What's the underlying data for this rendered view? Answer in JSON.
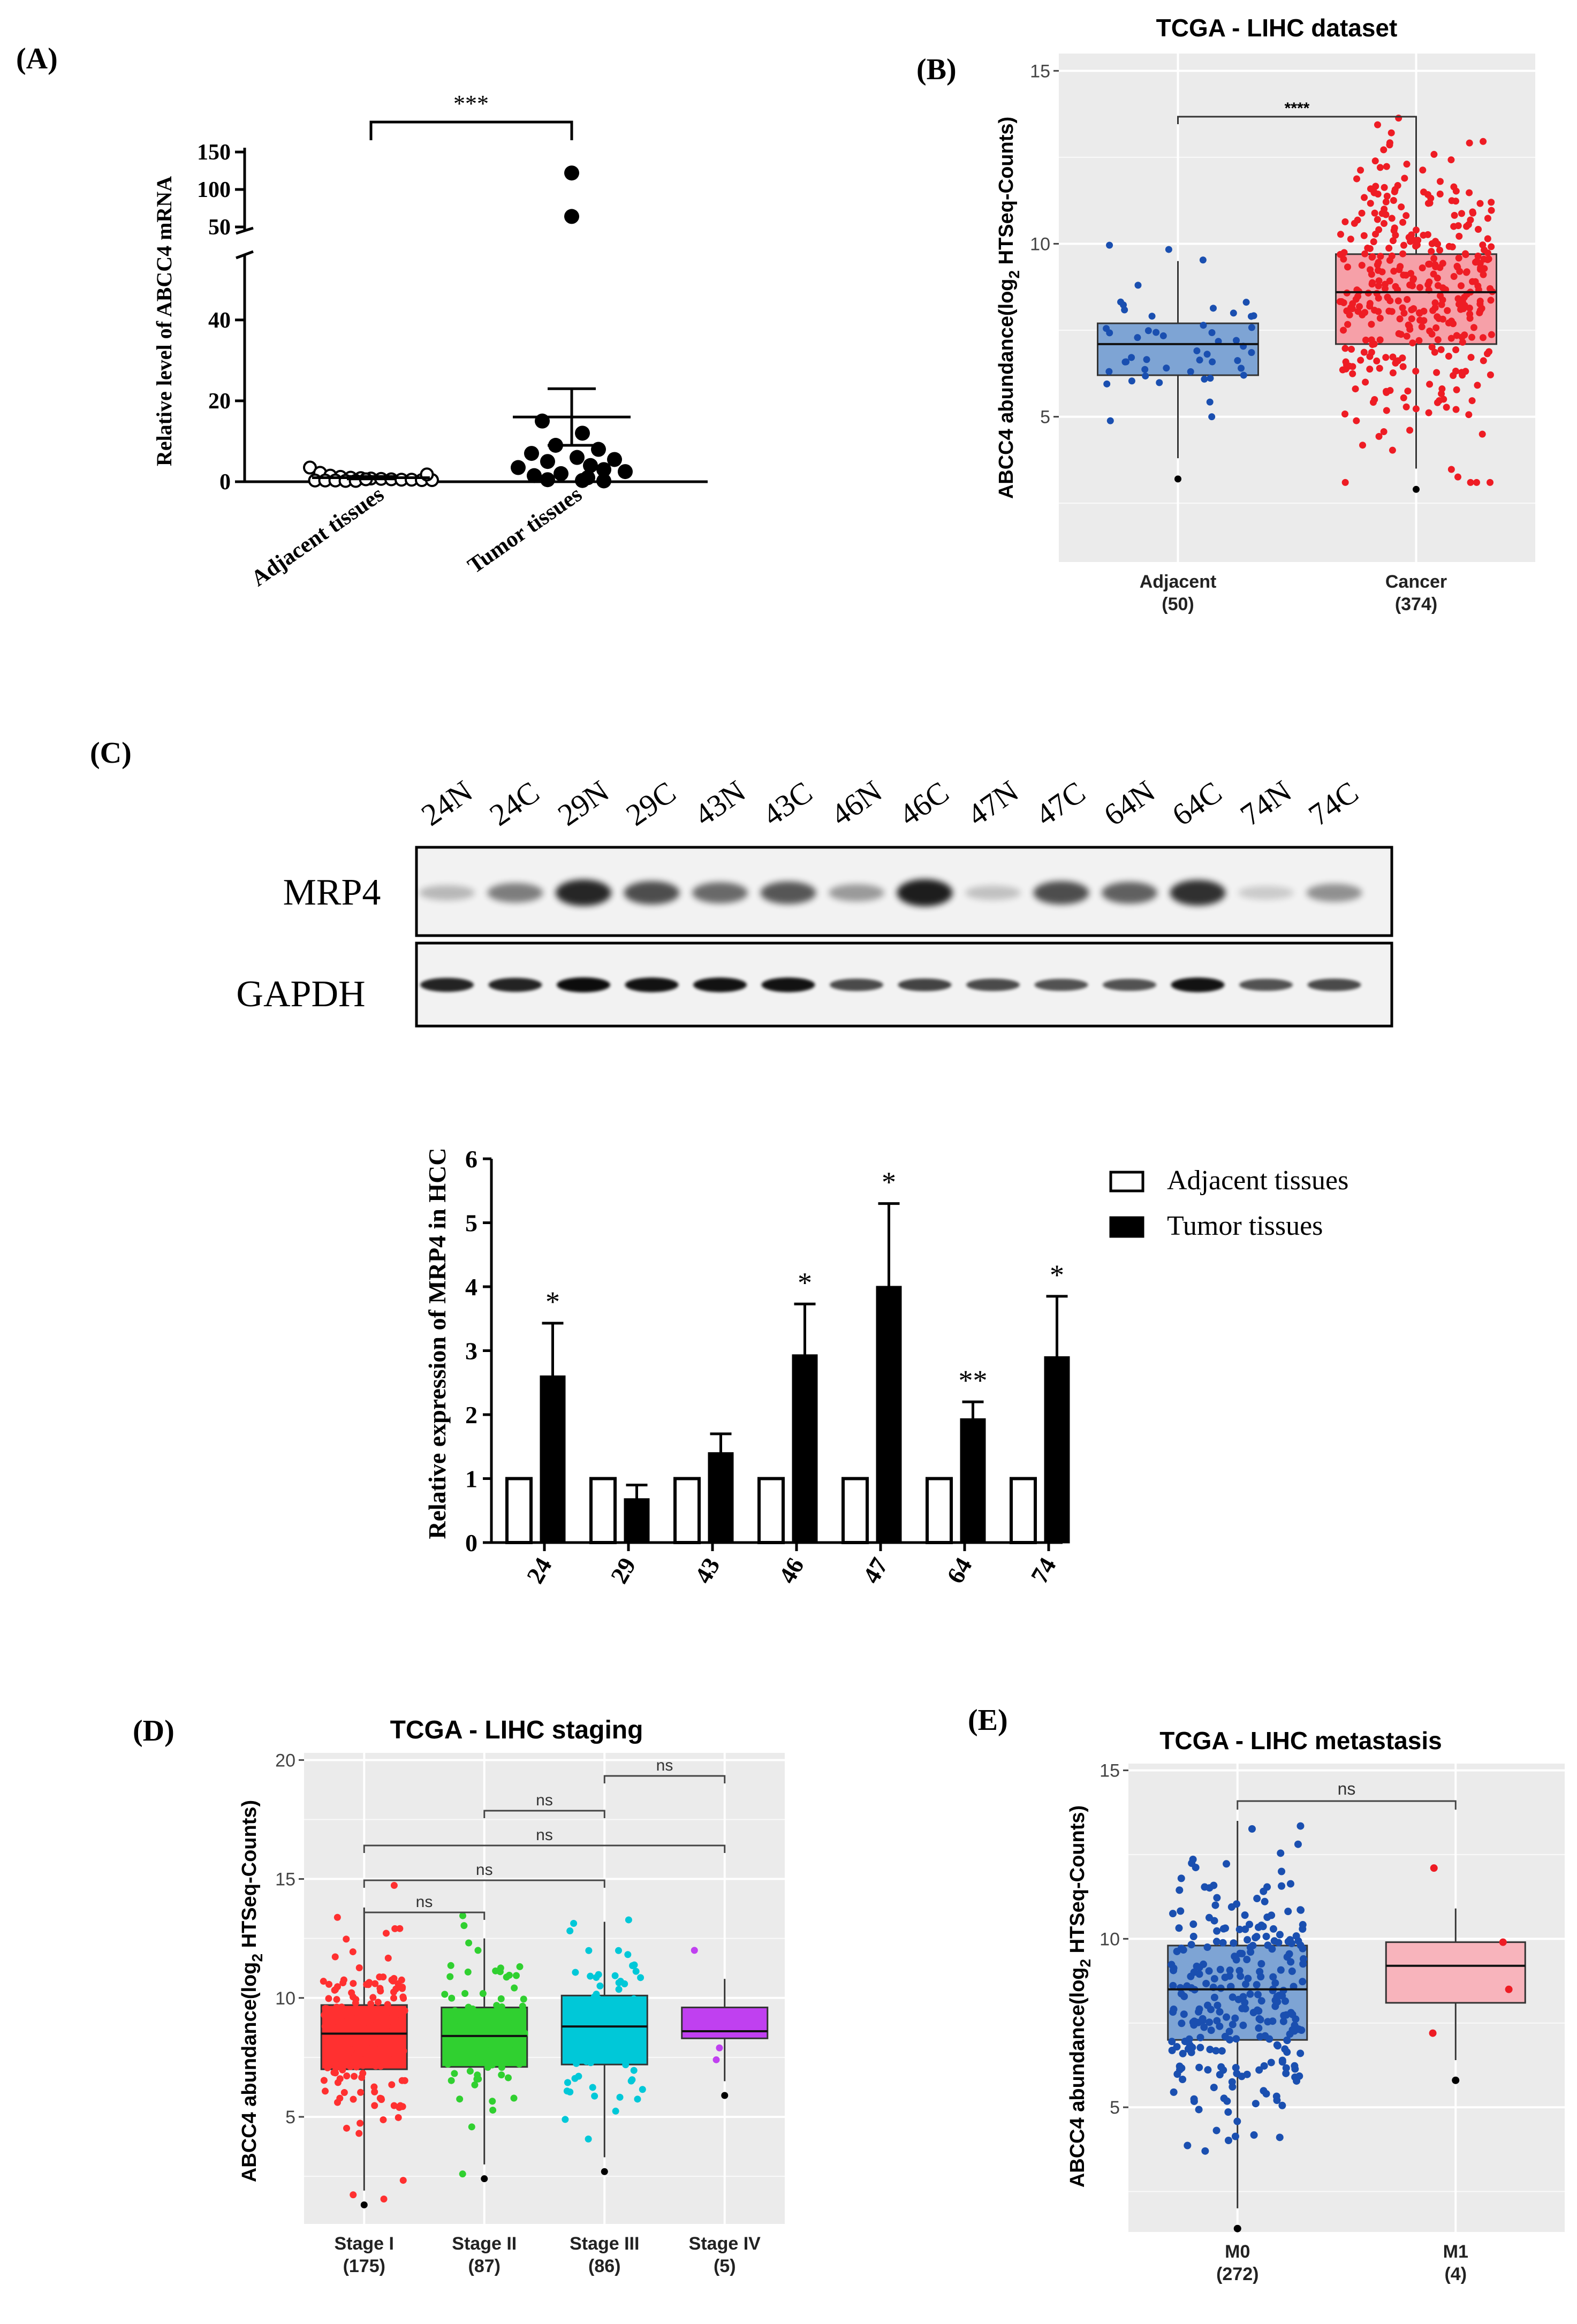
{
  "panels": {
    "A": {
      "label": "(A)"
    },
    "B": {
      "label": "(B)"
    },
    "C": {
      "label": "(C)"
    },
    "D": {
      "label": "(D)"
    },
    "E": {
      "label": "(E)"
    }
  },
  "colors": {
    "adjacent_box": "#7ea4d4",
    "adjacent_pts": "#1a4fb0",
    "cancer_box": "#f6a0a8",
    "cancer_pts": "#ee1c24",
    "stage1": "#ff3030",
    "stage2": "#30d030",
    "stage3": "#00c8d8",
    "stage4": "#c040f0",
    "m1_box": "#f8b4bc",
    "m1_pts": "#ee1c24",
    "panel_bg": "#ebebeb"
  },
  "chart_data": [
    {
      "id": "A",
      "type": "scatter",
      "title": "",
      "ylabel": "Relative level of ABCC4 mRNA",
      "categories": [
        "Adjacent tissues",
        "Tumor tissues"
      ],
      "yticks": [
        "0",
        "20",
        "40",
        "50",
        "100",
        "150"
      ],
      "axis_break": [
        45,
        50
      ],
      "significance": "***",
      "series": [
        {
          "name": "Adjacent tissues",
          "marker": "open-circle",
          "mean": 1.0,
          "sem": 0.3,
          "values": [
            3.5,
            2.2,
            1.5,
            1.2,
            1.0,
            0.9,
            0.8,
            0.7,
            0.6,
            0.5,
            0.5,
            0.4,
            0.4,
            0.3,
            0.3,
            0.3,
            0.2,
            0.2,
            0.6,
            1.8
          ]
        },
        {
          "name": "Tumor tissues",
          "marker": "filled-circle",
          "mean": 16,
          "sem": 7,
          "values": [
            122,
            64,
            15,
            12,
            9,
            8,
            7,
            6,
            5.5,
            5,
            4,
            3.5,
            3,
            2.5,
            2,
            1.5,
            1.0,
            0.5,
            0.3,
            0.2
          ]
        }
      ]
    },
    {
      "id": "B",
      "type": "box",
      "title": "TCGA - LIHC dataset",
      "ylabel_prefix": "ABCC4 abundance(log",
      "ylabel_sub": "2",
      "ylabel_suffix": " HTSeq-Counts)",
      "yticks": [
        "5",
        "10",
        "15"
      ],
      "ylim": [
        0.8,
        15.5
      ],
      "significance": "****",
      "groups": [
        {
          "name": "Adjacent",
          "n": "(50)",
          "q1": 6.2,
          "median": 7.1,
          "q3": 7.7,
          "wlo": 3.8,
          "whi": 9.5,
          "npts": 50,
          "color": "adjacent_box",
          "pt_color": "adjacent_pts"
        },
        {
          "name": "Cancer",
          "n": "(374)",
          "q1": 7.1,
          "median": 8.6,
          "q3": 9.7,
          "wlo": 3.5,
          "whi": 13.6,
          "npts": 374,
          "color": "cancer_box",
          "pt_color": "cancer_pts"
        }
      ]
    },
    {
      "id": "C-blot",
      "type": "other",
      "lanes": [
        "24N",
        "24C",
        "29N",
        "29C",
        "43N",
        "43C",
        "46N",
        "46C",
        "47N",
        "47C",
        "64N",
        "64C",
        "74N",
        "74C"
      ],
      "rows": [
        "MRP4",
        "GAPDH"
      ],
      "mrp4_intensity": [
        0.15,
        0.45,
        0.9,
        0.7,
        0.55,
        0.65,
        0.3,
        0.95,
        0.1,
        0.7,
        0.6,
        0.85,
        0.05,
        0.35
      ],
      "gapdh_intensity": [
        0.85,
        0.85,
        1.0,
        0.95,
        0.95,
        0.95,
        0.6,
        0.65,
        0.6,
        0.55,
        0.55,
        0.95,
        0.55,
        0.6
      ]
    },
    {
      "id": "C-bar",
      "type": "bar",
      "ylabel": "Relative expression of MRP4 in HCC",
      "categories": [
        "24",
        "29",
        "43",
        "46",
        "47",
        "64",
        "74"
      ],
      "yticks": [
        "0",
        "1",
        "2",
        "3",
        "4",
        "5",
        "6"
      ],
      "ylim": [
        0,
        6
      ],
      "series": [
        {
          "name": "Adjacent tissues",
          "values": [
            1,
            1,
            1,
            1,
            1,
            1,
            1
          ],
          "errors": [
            0,
            0,
            0,
            0,
            0,
            0,
            0
          ]
        },
        {
          "name": "Tumor tissues",
          "values": [
            2.6,
            0.68,
            1.4,
            2.93,
            4.0,
            1.93,
            2.9
          ],
          "errors": [
            0.83,
            0.22,
            0.3,
            0.8,
            1.3,
            0.27,
            0.95
          ]
        }
      ],
      "annotations": [
        "*",
        "",
        "",
        "*",
        "*",
        "**",
        "*"
      ]
    },
    {
      "id": "D",
      "type": "box",
      "title": "TCGA - LIHC staging",
      "ylabel_prefix": "ABCC4 abundance(log",
      "ylabel_sub": "2",
      "ylabel_suffix": " HTSeq-Counts)",
      "yticks": [
        "5",
        "10",
        "15",
        "20"
      ],
      "ylim": [
        0.5,
        20.3
      ],
      "comparisons": [
        {
          "from": 0,
          "to": 1,
          "label": "ns"
        },
        {
          "from": 0,
          "to": 2,
          "label": "ns"
        },
        {
          "from": 0,
          "to": 3,
          "label": "ns"
        },
        {
          "from": 1,
          "to": 2,
          "label": "ns"
        },
        {
          "from": 2,
          "to": 3,
          "label": "ns"
        }
      ],
      "groups": [
        {
          "name": "Stage I",
          "n": "(175)",
          "q1": 7.0,
          "median": 8.5,
          "q3": 9.7,
          "wlo": 1.9,
          "whi": 13.8,
          "npts": 175,
          "color": "stage1"
        },
        {
          "name": "Stage II",
          "n": "(87)",
          "q1": 7.1,
          "median": 8.4,
          "q3": 9.6,
          "wlo": 3.0,
          "whi": 12.5,
          "npts": 87,
          "color": "stage2"
        },
        {
          "name": "Stage III",
          "n": "(86)",
          "q1": 7.2,
          "median": 8.8,
          "q3": 10.1,
          "wlo": 3.3,
          "whi": 13.2,
          "npts": 86,
          "color": "stage3"
        },
        {
          "name": "Stage IV",
          "n": "(5)",
          "q1": 8.3,
          "median": 8.6,
          "q3": 9.6,
          "wlo": 6.5,
          "whi": 10.8,
          "npts": 5,
          "color": "stage4"
        }
      ]
    },
    {
      "id": "E",
      "type": "box",
      "title": "TCGA - LIHC metastasis",
      "ylabel_prefix": "ABCC4 abundance(log",
      "ylabel_sub": "2",
      "ylabel_suffix": " HTSeq-Counts)",
      "yticks": [
        "5",
        "10",
        "15"
      ],
      "ylim": [
        1.3,
        15.2
      ],
      "significance": "ns",
      "groups": [
        {
          "name": "M0",
          "n": "(272)",
          "q1": 7.0,
          "median": 8.5,
          "q3": 9.8,
          "wlo": 2.0,
          "whi": 13.5,
          "npts": 272,
          "color": "adjacent_box",
          "pt_color": "adjacent_pts"
        },
        {
          "name": "M1",
          "n": "(4)",
          "q1": 8.1,
          "median": 9.2,
          "q3": 9.9,
          "wlo": 6.4,
          "whi": 10.9,
          "npts": 4,
          "color": "m1_box",
          "pt_color": "m1_pts"
        }
      ]
    }
  ]
}
